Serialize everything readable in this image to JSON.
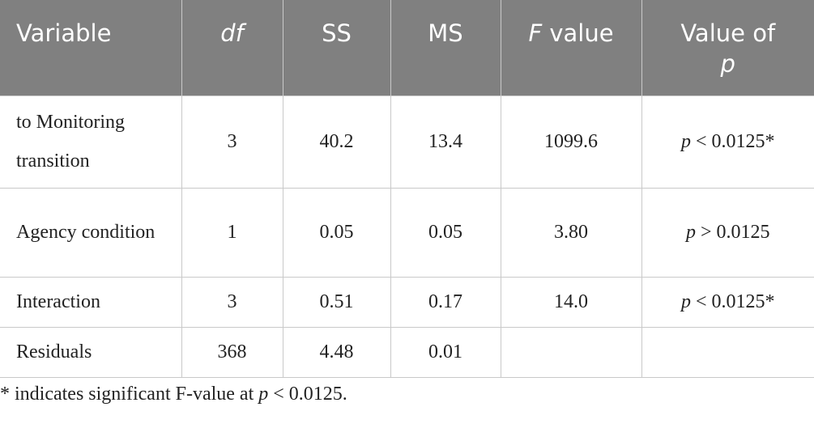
{
  "table": {
    "header": [
      "Variable",
      "df",
      "SS",
      "MS",
      [
        "F",
        "value"
      ],
      [
        "Value of",
        "p"
      ]
    ],
    "rows": [
      [
        "to Monitoring transition",
        "3",
        "40.2",
        "13.4",
        "1099.6",
        [
          "p",
          "< 0.0125*"
        ]
      ],
      [
        "Agency condition",
        "1",
        "0.05",
        "0.05",
        "3.80",
        [
          "p",
          "> 0.0125"
        ]
      ],
      [
        "Interaction",
        "3",
        "0.51",
        "0.17",
        "14.0",
        [
          "p",
          "< 0.0125*"
        ]
      ],
      [
        "Residuals",
        "368",
        "4.48",
        "0.01"
      ]
    ]
  },
  "footnote": [
    "* indicates significant F-value at",
    "p",
    "< 0.0125."
  ]
}
